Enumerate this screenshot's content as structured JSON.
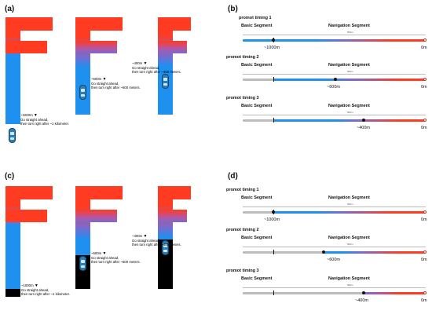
{
  "panels": {
    "a": "(a)",
    "b": "(b)",
    "c": "(c)",
    "d": "(d)"
  },
  "scenes": {
    "n1000": {
      "dist": "~1000m",
      "line1": "Go straight ahead,",
      "line2": "then turn right after ~1 kilometer."
    },
    "n600": {
      "dist": "~600m",
      "line1": "Go straight ahead,",
      "line2": "then turn right after ~600 meters."
    },
    "n400": {
      "dist": "~400m",
      "line1": "Go straight ahead,",
      "line2": "then turn right after ~400 meters."
    }
  },
  "timeline": {
    "t1": "promot timing 1",
    "t2": "promot timing 2",
    "t3": "promot timing 3",
    "basic": "Basic Segment",
    "nav": "Navigation Segment",
    "m1000": "~1000m",
    "m600": "~600m",
    "m400": "~400m",
    "zero": "0m",
    "small_tick": "500m"
  },
  "colors": {
    "red": "#ff3b22",
    "blue": "#1e90f0",
    "dark": "#000000",
    "gray_bar": "#bcbcbc"
  }
}
